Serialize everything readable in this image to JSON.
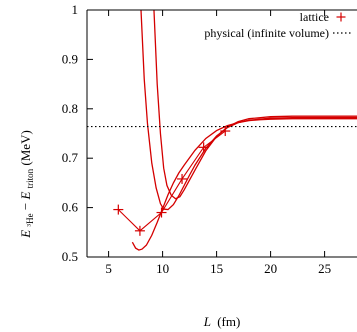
{
  "chart_data": {
    "type": "line",
    "xlabel": {
      "symbol": "L",
      "unit": "(fm)"
    },
    "ylabel": {
      "lead": "E",
      "lead_sub": "³He",
      "minus": " − ",
      "second": "E",
      "second_sub": "triton",
      "unit": " (MeV)"
    },
    "xlim": [
      3,
      28
    ],
    "ylim": [
      0.5,
      1.0
    ],
    "x_ticks": [
      5,
      10,
      15,
      20,
      25
    ],
    "y_ticks": [
      0.5,
      0.6,
      0.7,
      0.8,
      0.9,
      1.0
    ],
    "y_tick_labels": [
      "0.5",
      "0.6",
      "0.7",
      "0.8",
      "0.9",
      "1"
    ],
    "x_tick_labels": [
      "5",
      "10",
      "15",
      "20",
      "25"
    ],
    "legend": {
      "placement": "top-right",
      "entries": [
        {
          "label": "lattice",
          "marker": "+",
          "color": "#d40000"
        },
        {
          "label": "physical (infinite volume)",
          "style": "dotted",
          "color": "#000000"
        }
      ]
    },
    "physical_value": 0.764,
    "lattice_points": {
      "name": "lattice",
      "color": "#d40000",
      "x": [
        5.9,
        7.9,
        9.9,
        11.8,
        13.8,
        15.8
      ],
      "y": [
        0.596,
        0.553,
        0.59,
        0.658,
        0.722,
        0.755
      ]
    },
    "fit_curves": {
      "color": "#d40000",
      "asymptote": 0.782,
      "curves": [
        {
          "x": [
            7.2,
            7.5,
            7.8,
            8.1,
            8.5,
            9.0,
            9.5,
            10.0,
            10.5,
            11.0,
            11.5,
            12.0,
            13.0,
            14.0,
            15.0,
            16.0,
            17.0,
            18.0,
            19.0,
            20.0,
            22.0,
            24.0,
            26.0,
            28.0
          ],
          "y": [
            0.53,
            0.518,
            0.514,
            0.516,
            0.524,
            0.544,
            0.57,
            0.598,
            0.626,
            0.65,
            0.67,
            0.686,
            0.716,
            0.74,
            0.756,
            0.766,
            0.772,
            0.776,
            0.778,
            0.779,
            0.78,
            0.78,
            0.78,
            0.78
          ]
        },
        {
          "x": [
            8.0,
            8.3,
            8.6,
            9.0,
            9.4,
            9.8,
            10.1,
            10.5,
            11.0,
            11.5,
            12.0,
            12.5,
            13.0,
            14.0,
            15.0,
            16.0,
            17.0,
            18.0,
            20.0,
            22.0,
            24.0,
            26.0,
            28.0
          ],
          "y": [
            1.0,
            0.86,
            0.77,
            0.69,
            0.64,
            0.608,
            0.597,
            0.596,
            0.606,
            0.624,
            0.645,
            0.666,
            0.686,
            0.72,
            0.745,
            0.762,
            0.772,
            0.777,
            0.781,
            0.782,
            0.782,
            0.782,
            0.782
          ]
        },
        {
          "x": [
            9.2,
            9.5,
            9.8,
            10.1,
            10.4,
            10.8,
            11.2,
            11.6,
            12.0,
            12.5,
            13.0,
            14.0,
            15.0,
            16.0,
            17.0,
            18.0,
            20.0,
            22.0,
            24.0,
            26.0,
            28.0
          ],
          "y": [
            1.0,
            0.85,
            0.75,
            0.68,
            0.645,
            0.625,
            0.618,
            0.622,
            0.636,
            0.656,
            0.676,
            0.715,
            0.744,
            0.763,
            0.774,
            0.78,
            0.784,
            0.785,
            0.785,
            0.785,
            0.785
          ]
        }
      ]
    }
  }
}
